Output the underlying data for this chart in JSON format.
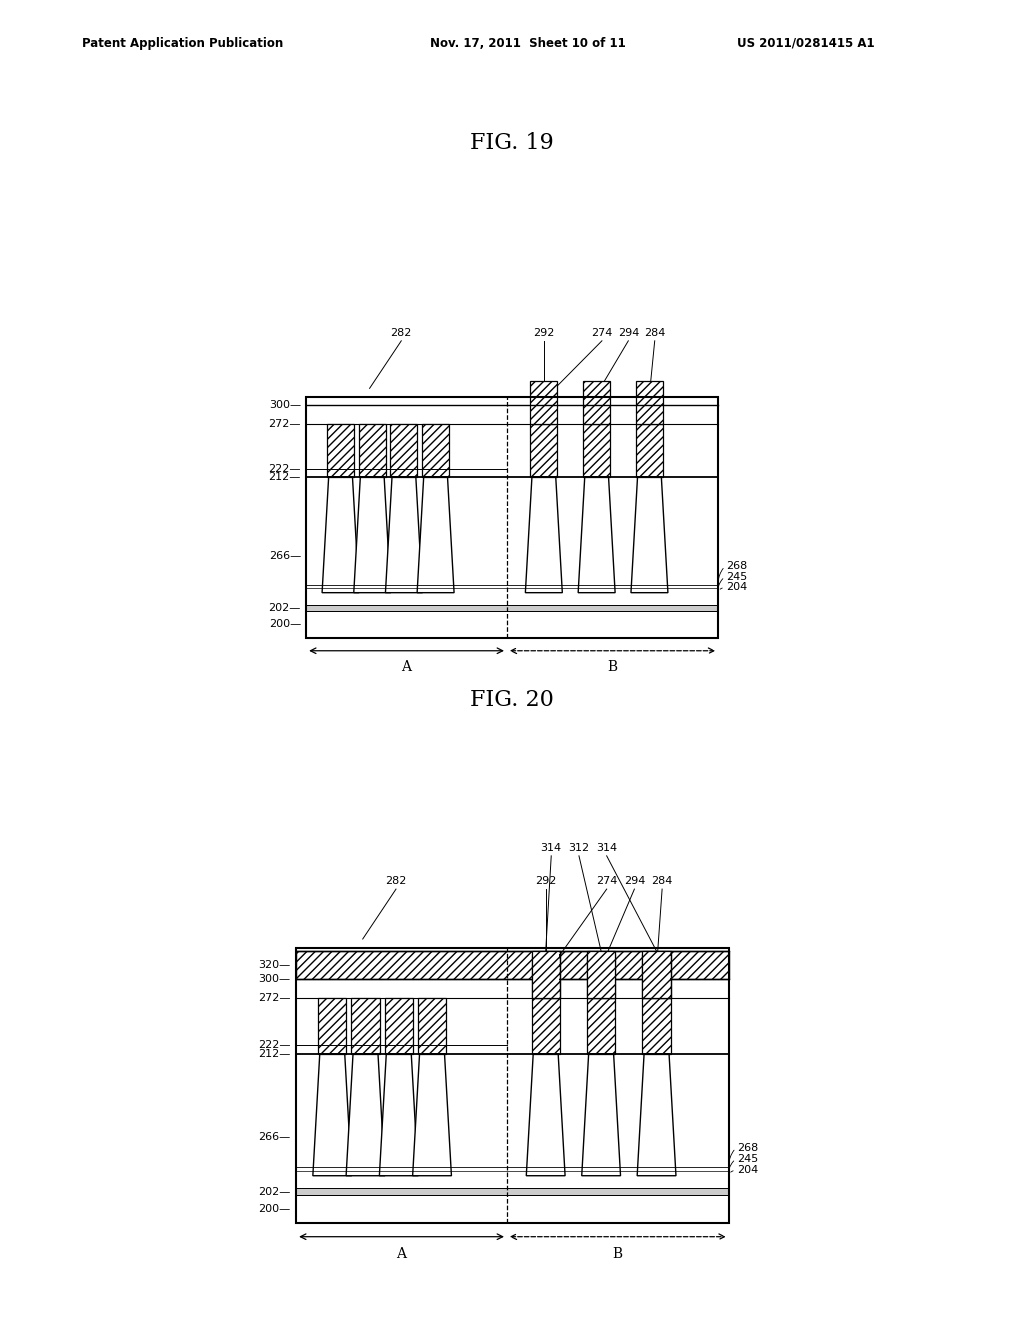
{
  "bg_color": "#ffffff",
  "header_text": "Patent Application Publication    Nov. 17, 2011  Sheet 10 of 11     US 2011/0281415 A1",
  "fig19_title": "FIG. 19",
  "fig20_title": "FIG. 20",
  "hatch_pattern": "////",
  "line_color": "#000000",
  "fig19_labels_left": [
    "300",
    "272",
    "222",
    "212",
    "266",
    "202",
    "200"
  ],
  "fig19_labels_right": [
    "268",
    "245",
    "204"
  ],
  "fig19_labels_top": [
    "282",
    "292",
    "274",
    "294",
    "284"
  ],
  "fig20_labels_top_extra": [
    "314",
    "312",
    "314"
  ],
  "fig20_label_320": "320"
}
